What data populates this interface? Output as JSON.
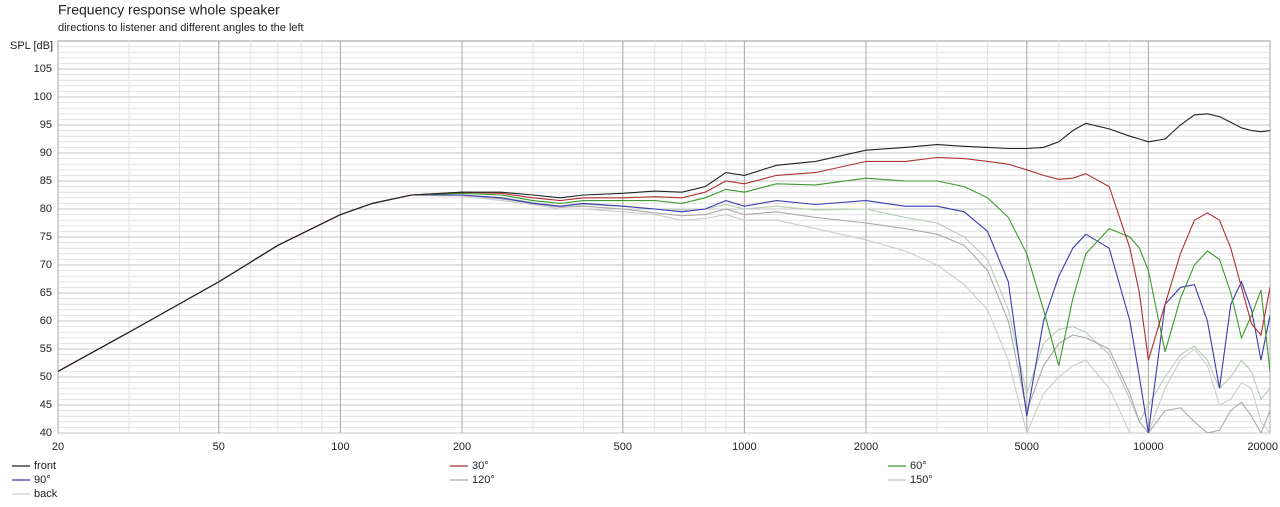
{
  "chart_data": {
    "type": "line",
    "title": "Frequency response whole speaker",
    "subtitle": "directions to listener and different angles to the left",
    "ylabel": "SPL [dB]",
    "log_x": true,
    "grid": true,
    "xlim": [
      20,
      20000
    ],
    "ylim": [
      40,
      110
    ],
    "xticks": [
      20,
      50,
      100,
      200,
      500,
      1000,
      2000,
      5000,
      10000,
      20000
    ],
    "yticks": [
      40,
      45,
      50,
      55,
      60,
      65,
      70,
      75,
      80,
      85,
      90,
      95,
      100,
      105
    ],
    "x": [
      20,
      30,
      50,
      70,
      100,
      120,
      150,
      200,
      250,
      300,
      350,
      400,
      500,
      600,
      700,
      800,
      900,
      1000,
      1200,
      1500,
      2000,
      2500,
      3000,
      3500,
      4000,
      4500,
      5000,
      5500,
      6000,
      6500,
      7000,
      8000,
      9000,
      9500,
      10000,
      11000,
      12000,
      13000,
      14000,
      15000,
      16000,
      17000,
      18000,
      19000,
      20000
    ],
    "series": [
      {
        "name": "front",
        "color": "#222222",
        "values": [
          51,
          58,
          67,
          73.5,
          79,
          81,
          82.5,
          83,
          83,
          82.5,
          82,
          82.5,
          82.8,
          83.2,
          83,
          84,
          86.5,
          86,
          87.8,
          88.5,
          90.5,
          91,
          91.5,
          91.2,
          91,
          90.8,
          90.8,
          91,
          92,
          94,
          95.3,
          94.3,
          93,
          92.5,
          92,
          92.5,
          95,
          96.8,
          97,
          96.5,
          95.5,
          94.5,
          94,
          93.8,
          94
        ]
      },
      {
        "name": "30°",
        "color": "#b03030",
        "values": [
          51,
          58,
          67,
          73.5,
          79,
          81,
          82.5,
          83,
          82.8,
          82,
          81.5,
          82,
          82,
          82.2,
          82,
          83,
          85,
          84.5,
          86,
          86.5,
          88.5,
          88.5,
          89.2,
          89,
          88.5,
          88,
          87,
          86,
          85.3,
          85.5,
          86.3,
          84,
          73,
          65,
          53,
          63,
          72,
          78,
          79.3,
          78,
          73,
          66,
          59.5,
          57.5,
          66
        ]
      },
      {
        "name": "60°",
        "color": "#3a9a2a",
        "values": [
          51,
          58,
          67,
          73.5,
          79,
          81,
          82.5,
          82.8,
          82.5,
          81.5,
          81,
          81.5,
          81.5,
          81.5,
          81,
          82,
          83.5,
          83,
          84.5,
          84.3,
          85.5,
          85,
          85,
          84,
          82,
          78.5,
          72,
          62,
          52,
          64,
          72,
          76.5,
          75,
          73,
          69,
          54.5,
          64,
          70,
          72.5,
          71,
          65,
          57,
          61,
          65.5,
          51
        ]
      },
      {
        "name": "90°",
        "color": "#3a3ab0",
        "values": [
          51,
          58,
          67,
          73.5,
          79,
          81,
          82.5,
          82.5,
          82,
          81,
          80.5,
          81,
          80.5,
          80,
          79.5,
          80,
          81.5,
          80.5,
          81.5,
          80.8,
          81.5,
          80.5,
          80.5,
          79.5,
          76,
          67,
          43,
          60,
          68,
          73,
          75.5,
          73,
          60,
          50,
          40,
          63,
          66,
          66.5,
          60,
          48,
          63,
          67,
          62,
          53,
          61
        ]
      },
      {
        "name": "120°",
        "color": "#aaaaaa",
        "values": [
          51,
          58,
          67,
          73.5,
          79,
          81,
          82.5,
          82.5,
          81.8,
          81,
          80.3,
          80.5,
          80,
          79.3,
          78.8,
          79,
          80,
          79,
          79.5,
          78.5,
          77.5,
          76.5,
          75.5,
          73.5,
          69,
          60,
          44,
          52,
          56,
          57.5,
          57,
          55,
          47,
          42,
          40,
          44,
          44.5,
          42,
          40,
          40.5,
          44,
          45.5,
          43,
          40,
          44
        ]
      },
      {
        "name": "150°",
        "color": "#b8ccb8",
        "values": [
          51,
          58,
          67,
          73.5,
          79,
          81,
          82.5,
          82.5,
          82,
          81.2,
          80.5,
          80.8,
          80.5,
          80,
          79.8,
          80,
          80.8,
          80,
          80.5,
          79.8,
          80,
          78.5,
          77.5,
          75,
          71,
          62,
          47,
          56,
          58.5,
          59,
          58,
          54,
          46,
          42,
          45,
          50,
          54,
          55.5,
          53,
          48,
          50,
          53,
          51,
          46,
          48
        ]
      },
      {
        "name": "back",
        "color": "#cccccc",
        "values": [
          51,
          58,
          67,
          73.5,
          79,
          81,
          82.5,
          82.3,
          81.5,
          80.8,
          80,
          80,
          79.5,
          79,
          78,
          78.3,
          79,
          78,
          78,
          76.5,
          74.5,
          72.5,
          70,
          66.5,
          62,
          53,
          40,
          47,
          50,
          52,
          53,
          48,
          40,
          38,
          40,
          48,
          53,
          55,
          52,
          45,
          46,
          49,
          48,
          42,
          40
        ]
      }
    ]
  }
}
